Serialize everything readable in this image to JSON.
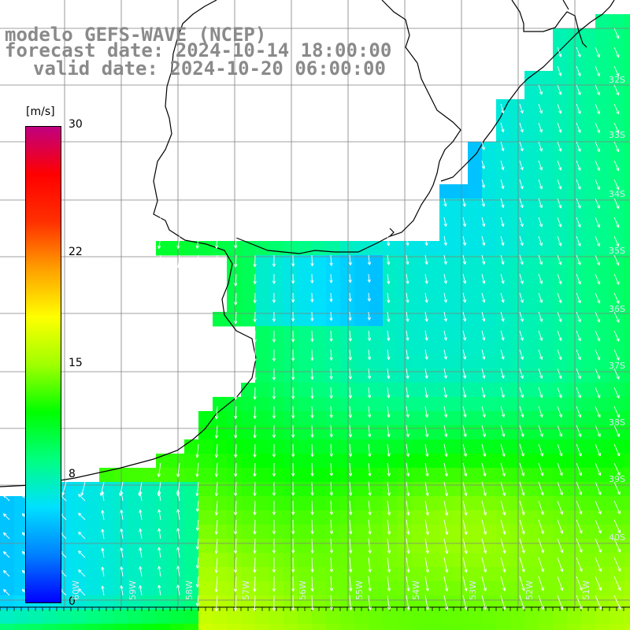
{
  "header": {
    "model_line": "modelo GEFS-WAVE (NCEP)",
    "forecast_line": "forecast date: 2024-10-14 18:00:00",
    "valid_line": "valid date: 2024-10-20 06:00:00"
  },
  "colorbar": {
    "units": "[m/s]",
    "ticks": [
      {
        "label": "30",
        "value": 30
      },
      {
        "label": "22",
        "value": 22
      },
      {
        "label": "15",
        "value": 15
      },
      {
        "label": "8",
        "value": 8
      },
      {
        "label": "0",
        "value": 0
      }
    ],
    "min": 0,
    "max": 30,
    "colors": [
      "#0000ff",
      "#0080ff",
      "#00e0ff",
      "#00ff80",
      "#00ff00",
      "#a0ff00",
      "#ffff00",
      "#ffa000",
      "#ff3000",
      "#ff0000",
      "#c00080"
    ]
  },
  "grid": {
    "lat_labels": [
      "32S",
      "33S",
      "34S",
      "35S",
      "36S",
      "37S",
      "38S",
      "39S",
      "40S"
    ],
    "lon_labels": [
      "60W",
      "59W",
      "58W",
      "57W",
      "56W",
      "55W",
      "54W",
      "53W",
      "52W",
      "51W"
    ]
  },
  "colors": {
    "land": "#ffffff",
    "coast": "#000000",
    "grid_line": "#808080",
    "arrow": "#ffffff",
    "title_text": "#8a8a8a"
  }
}
